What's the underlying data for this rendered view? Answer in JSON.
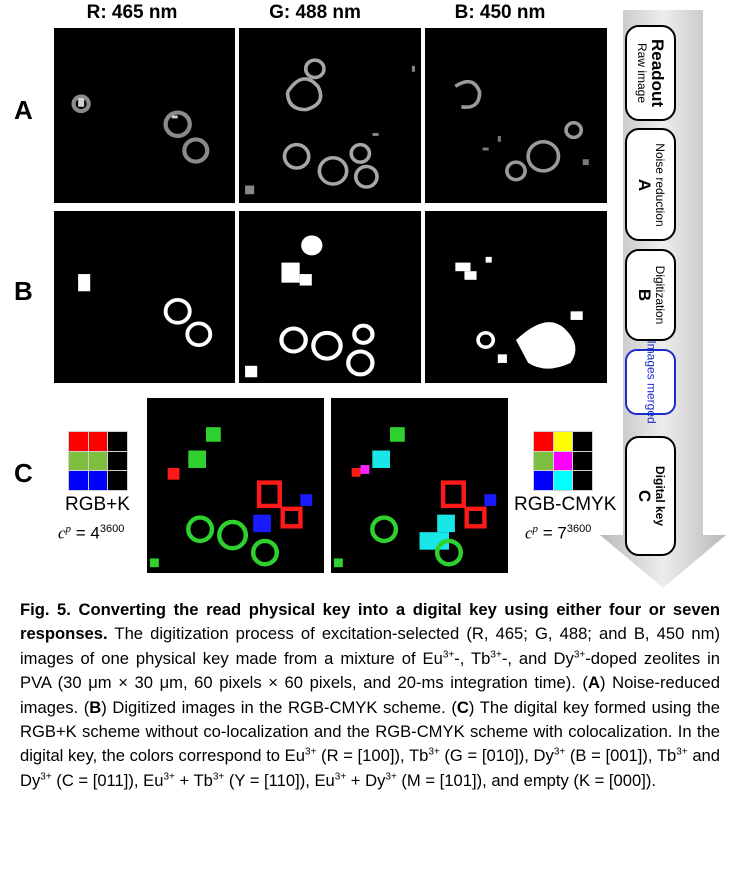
{
  "columns": [
    "R: 465 nm",
    "G: 488 nm",
    "B: 450 nm"
  ],
  "rows": [
    "A",
    "B",
    "C"
  ],
  "workflow": {
    "readout": {
      "title": "Readout",
      "subtitle": "Raw image"
    },
    "noise": {
      "title": "A",
      "subtitle": "Noise reduction"
    },
    "digitization": {
      "title": "B",
      "subtitle": "Digitization"
    },
    "merged": {
      "subtitle": "Images merged"
    },
    "digital_key": {
      "title": "C",
      "subtitle": "Digital key"
    }
  },
  "schemes": {
    "left": {
      "label": "RGB+K",
      "cp_base": "4",
      "cp_exp": "3600",
      "cp_var": "c",
      "cp_sup": "p",
      "eq": " = ",
      "colors": [
        "#ff0000",
        "#ff0000",
        "#000000",
        "#7fbf3f",
        "#7fbf3f",
        "#000000",
        "#0000ff",
        "#0000ff",
        "#000000"
      ]
    },
    "right": {
      "label": "RGB-CMYK",
      "cp_base": "7",
      "cp_exp": "3600",
      "cp_var": "c",
      "cp_sup": "p",
      "eq": " = ",
      "colors": [
        "#ff0000",
        "#ffff00",
        "#000000",
        "#7fbf3f",
        "#ff00ff",
        "#000000",
        "#0000ff",
        "#00ffff",
        "#000000"
      ]
    }
  },
  "caption": {
    "fig": "Fig. 5.",
    "lead": " Converting the read physical key into a digital key using either four or seven responses.",
    "body_1": " The digitization process of excitation-selected (R, 465; G, 488; and B, 450 nm) images of one physical key made from a mixture of Eu",
    "sup3": "3+",
    "body_2": "-, Tb",
    "body_3": "-, and Dy",
    "body_4": "-doped zeolites in PVA (30 μm × 30 μm, 60 pixels × 60 pixels, and 20-ms integration time). (",
    "a": "A",
    "body_5": ") Noise-reduced images. (",
    "b": "B",
    "body_6": ") Digitized images in the RGB-CMYK scheme. (",
    "c": "C",
    "body_7": ") The digital key formed using the RGB+K scheme without co-localization and the RGB-CMYK scheme with colocalization. In the digital key, the colors correspond to Eu",
    "body_8": " (R = [100]), Tb",
    "body_9": " (G = [010]), Dy",
    "body_10": " (B = [001]), Tb",
    "body_11": " and Dy",
    "body_12": " (C = [011]), Eu",
    "body_13": " + Tb",
    "body_14": " (Y = [110]), Eu",
    "body_15": " + Dy",
    "body_16": " (M = [101]), and empty (K = [000])."
  }
}
